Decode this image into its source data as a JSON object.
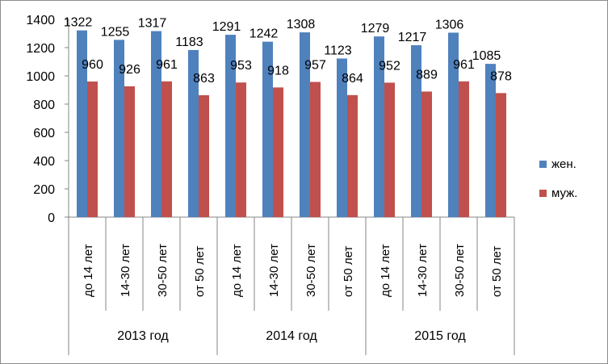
{
  "chart_data": {
    "type": "bar",
    "groups": [
      "2013 год",
      "2014 год",
      "2015 год"
    ],
    "subcategories": [
      "до 14 лет",
      "14-30 лет",
      "30-50 лет",
      "от 50 лет"
    ],
    "categories": [
      "до 14 лет",
      "14-30 лет",
      "30-50 лет",
      "от 50 лет",
      "до 14 лет",
      "14-30 лет",
      "30-50 лет",
      "от 50 лет",
      "до 14 лет",
      "14-30 лет",
      "30-50 лет",
      "от 50 лет"
    ],
    "series": [
      {
        "name": "жен.",
        "color": "#4f81bd",
        "values": [
          1322,
          1255,
          1317,
          1183,
          1291,
          1242,
          1308,
          1123,
          1279,
          1217,
          1306,
          1085
        ]
      },
      {
        "name": "муж.",
        "color": "#c0504d",
        "values": [
          960,
          926,
          961,
          863,
          953,
          918,
          957,
          864,
          952,
          889,
          961,
          878
        ]
      }
    ],
    "ylim": [
      0,
      1400
    ],
    "yticks": [
      0,
      200,
      400,
      600,
      800,
      1000,
      1200,
      1400
    ],
    "grid": false,
    "legend": "right",
    "data_labels": true
  }
}
